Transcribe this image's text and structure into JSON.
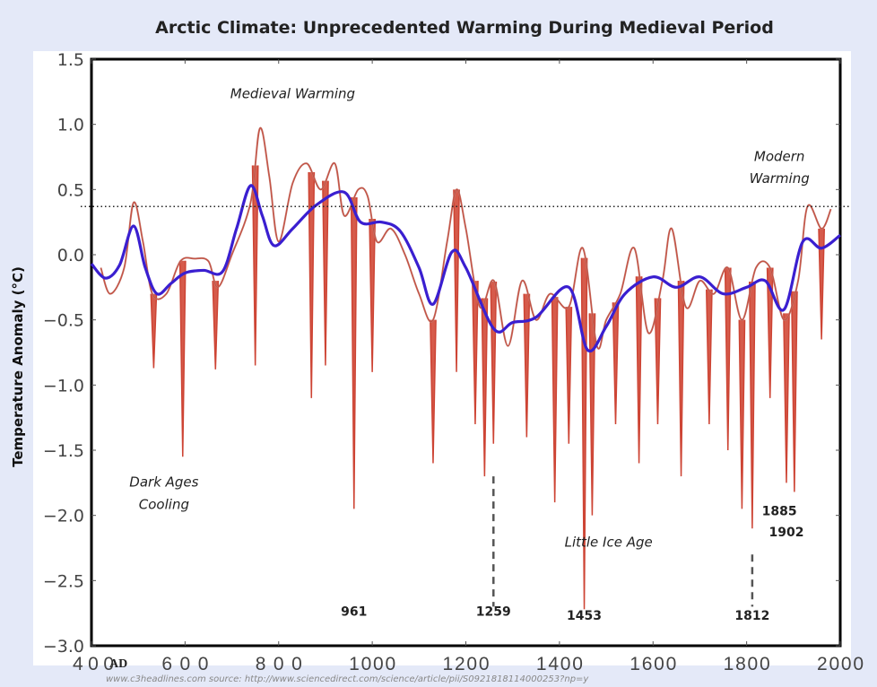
{
  "chart_data": {
    "type": "line",
    "title": "Arctic Climate: Unprecedented Warming During Medieval Period",
    "ylabel": "Temperature Anomaly (°C)",
    "xlabel": "",
    "xlim": [
      400,
      2000
    ],
    "ylim": [
      -3.0,
      1.5
    ],
    "x_ticks": [
      "400",
      "600",
      "800",
      "1000",
      "1200",
      "1400",
      "1600",
      "1800",
      "2000"
    ],
    "x_tick_suffix": "AD",
    "y_ticks": [
      "1.5",
      "1.0",
      "0.5",
      "0.0",
      "−0.5",
      "−1.0",
      "−1.5",
      "−2.0",
      "−2.5",
      "−3.0"
    ],
    "reference_line": 0.37,
    "colors": {
      "smoothed": "#3a1fd0",
      "annual": "#c83a2a",
      "envelope": "#c27a70"
    },
    "smoothed": [
      [
        400,
        -0.07
      ],
      [
        430,
        -0.18
      ],
      [
        460,
        -0.08
      ],
      [
        490,
        0.22
      ],
      [
        515,
        -0.1
      ],
      [
        540,
        -0.3
      ],
      [
        570,
        -0.22
      ],
      [
        600,
        -0.14
      ],
      [
        640,
        -0.12
      ],
      [
        680,
        -0.13
      ],
      [
        710,
        0.2
      ],
      [
        740,
        0.53
      ],
      [
        765,
        0.3
      ],
      [
        790,
        0.07
      ],
      [
        830,
        0.2
      ],
      [
        880,
        0.38
      ],
      [
        940,
        0.48
      ],
      [
        975,
        0.25
      ],
      [
        1020,
        0.25
      ],
      [
        1060,
        0.18
      ],
      [
        1100,
        -0.1
      ],
      [
        1130,
        -0.38
      ],
      [
        1170,
        0.02
      ],
      [
        1200,
        -0.1
      ],
      [
        1260,
        -0.57
      ],
      [
        1300,
        -0.52
      ],
      [
        1350,
        -0.48
      ],
      [
        1420,
        -0.25
      ],
      [
        1460,
        -0.73
      ],
      [
        1500,
        -0.55
      ],
      [
        1540,
        -0.3
      ],
      [
        1600,
        -0.17
      ],
      [
        1650,
        -0.25
      ],
      [
        1700,
        -0.17
      ],
      [
        1750,
        -0.3
      ],
      [
        1800,
        -0.25
      ],
      [
        1840,
        -0.2
      ],
      [
        1880,
        -0.42
      ],
      [
        1920,
        0.1
      ],
      [
        1960,
        0.05
      ],
      [
        2000,
        0.15
      ]
    ],
    "envelope": [
      [
        420,
        -0.1
      ],
      [
        440,
        -0.3
      ],
      [
        470,
        -0.1
      ],
      [
        490,
        0.4
      ],
      [
        510,
        0.1
      ],
      [
        530,
        -0.3
      ],
      [
        560,
        -0.3
      ],
      [
        590,
        -0.05
      ],
      [
        620,
        -0.03
      ],
      [
        650,
        -0.05
      ],
      [
        670,
        -0.25
      ],
      [
        700,
        0
      ],
      [
        740,
        0.4
      ],
      [
        760,
        0.97
      ],
      [
        780,
        0.6
      ],
      [
        800,
        0.1
      ],
      [
        830,
        0.55
      ],
      [
        860,
        0.7
      ],
      [
        890,
        0.5
      ],
      [
        920,
        0.7
      ],
      [
        940,
        0.3
      ],
      [
        970,
        0.5
      ],
      [
        990,
        0.45
      ],
      [
        1010,
        0.1
      ],
      [
        1040,
        0.2
      ],
      [
        1070,
        0
      ],
      [
        1100,
        -0.3
      ],
      [
        1130,
        -0.5
      ],
      [
        1160,
        0.1
      ],
      [
        1180,
        0.5
      ],
      [
        1200,
        0.2
      ],
      [
        1230,
        -0.4
      ],
      [
        1260,
        -0.2
      ],
      [
        1290,
        -0.7
      ],
      [
        1320,
        -0.2
      ],
      [
        1350,
        -0.5
      ],
      [
        1380,
        -0.3
      ],
      [
        1420,
        -0.4
      ],
      [
        1450,
        0.05
      ],
      [
        1480,
        -0.7
      ],
      [
        1500,
        -0.5
      ],
      [
        1530,
        -0.3
      ],
      [
        1560,
        0.05
      ],
      [
        1590,
        -0.6
      ],
      [
        1620,
        -0.2
      ],
      [
        1640,
        0.2
      ],
      [
        1670,
        -0.4
      ],
      [
        1700,
        -0.2
      ],
      [
        1730,
        -0.3
      ],
      [
        1760,
        -0.1
      ],
      [
        1790,
        -0.5
      ],
      [
        1820,
        -0.1
      ],
      [
        1850,
        -0.1
      ],
      [
        1880,
        -0.5
      ],
      [
        1910,
        -0.2
      ],
      [
        1930,
        0.37
      ],
      [
        1960,
        0.2
      ],
      [
        1980,
        0.35
      ]
    ],
    "spikes": [
      [
        533,
        -0.87
      ],
      [
        595,
        -1.55
      ],
      [
        665,
        -0.88
      ],
      [
        750,
        -0.85
      ],
      [
        870,
        -1.1
      ],
      [
        900,
        -0.85
      ],
      [
        961,
        -1.95
      ],
      [
        1000,
        -0.9
      ],
      [
        1130,
        -1.6
      ],
      [
        1180,
        -0.9
      ],
      [
        1220,
        -1.3
      ],
      [
        1240,
        -1.7
      ],
      [
        1259,
        -1.45
      ],
      [
        1330,
        -1.4
      ],
      [
        1390,
        -1.9
      ],
      [
        1420,
        -1.45
      ],
      [
        1453,
        -2.72
      ],
      [
        1470,
        -2.0
      ],
      [
        1520,
        -1.3
      ],
      [
        1570,
        -1.6
      ],
      [
        1610,
        -1.3
      ],
      [
        1660,
        -1.7
      ],
      [
        1720,
        -1.3
      ],
      [
        1760,
        -1.5
      ],
      [
        1790,
        -1.95
      ],
      [
        1812,
        -2.1
      ],
      [
        1850,
        -1.1
      ],
      [
        1885,
        -1.75
      ],
      [
        1902,
        -1.82
      ],
      [
        1960,
        -0.65
      ]
    ],
    "marked_years": [
      [
        1259,
        -1.7,
        -2.7
      ],
      [
        1812,
        -2.3,
        -2.7
      ]
    ],
    "annotations": [
      {
        "text": "Medieval Warming",
        "x": 830,
        "y": 1.2,
        "italic": true
      },
      {
        "text": "Modern",
        "x": 1870,
        "y": 0.72,
        "italic": true
      },
      {
        "text": "Warming",
        "x": 1870,
        "y": 0.55,
        "italic": true
      },
      {
        "text": "Dark Ages",
        "x": 555,
        "y": -1.78,
        "italic": true
      },
      {
        "text": "Cooling",
        "x": 555,
        "y": -1.95,
        "italic": true
      },
      {
        "text": "Little Ice Age",
        "x": 1505,
        "y": -2.24,
        "italic": true
      },
      {
        "text": "961",
        "x": 961,
        "y": -2.77,
        "bold": true
      },
      {
        "text": "1259",
        "x": 1259,
        "y": -2.77,
        "bold": true
      },
      {
        "text": "1453",
        "x": 1453,
        "y": -2.8,
        "bold": true
      },
      {
        "text": "1812",
        "x": 1812,
        "y": -2.8,
        "bold": true
      },
      {
        "text": "1885",
        "x": 1870,
        "y": -2.0,
        "bold": true
      },
      {
        "text": "1902",
        "x": 1885,
        "y": -2.16,
        "bold": true
      }
    ]
  },
  "source": "www.c3headlines.com  source: http://www.sciencedirect.com/science/article/pii/S0921818114000253?np=y"
}
